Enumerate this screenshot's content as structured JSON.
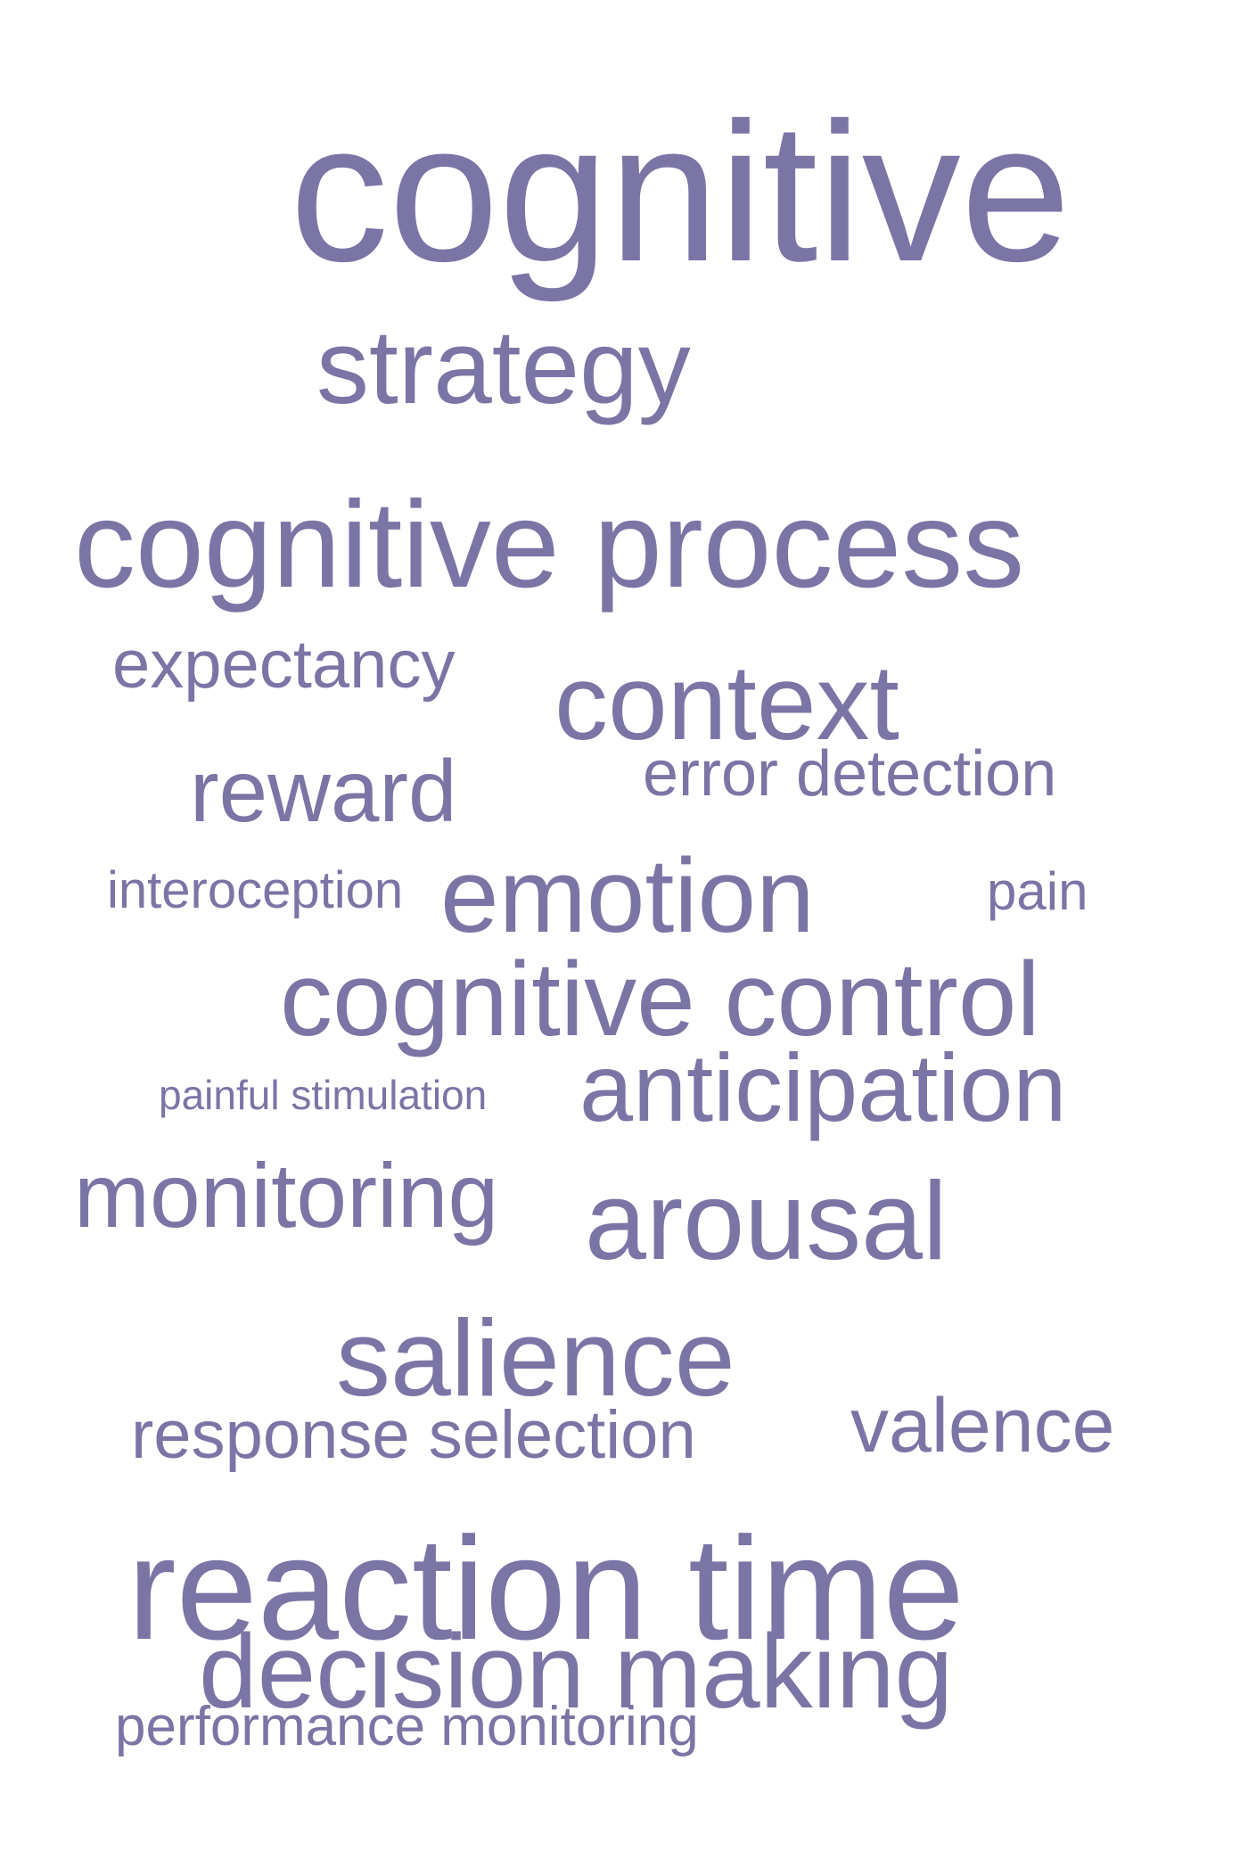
{
  "word_cloud": {
    "color": "#7b75a6",
    "background": "#ffffff",
    "words": [
      "cognitive",
      "strategy",
      "cognitive process",
      "expectancy",
      "context",
      "reward",
      "error detection",
      "interoception",
      "emotion",
      "pain",
      "cognitive control",
      "painful stimulation",
      "anticipation",
      "monitoring",
      "arousal",
      "salience",
      "response selection",
      "valence",
      "reaction time",
      "decision making",
      "performance monitoring"
    ]
  }
}
